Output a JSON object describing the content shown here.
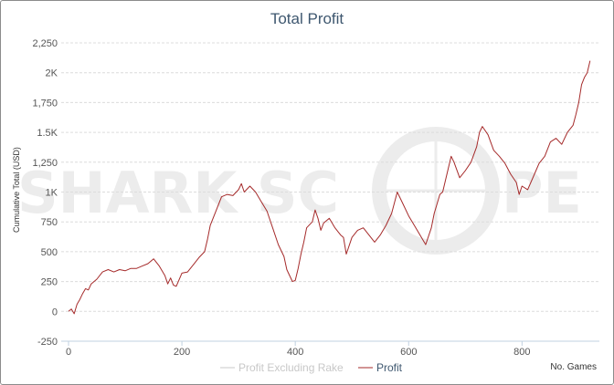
{
  "watermark": {
    "left": "SHARK SC",
    "right": "PE"
  },
  "legend": {
    "items": [
      {
        "label": "Profit Excluding Rake",
        "color": "#c8c8c8",
        "active": false
      },
      {
        "label": "Profit",
        "color": "#a52a2a",
        "active": true
      }
    ]
  },
  "chart_data": {
    "type": "line",
    "title": "Total Profit",
    "xlabel": "No. Games",
    "ylabel": "Cumulative Total (USD)",
    "xlim": [
      0,
      930
    ],
    "ylim": [
      -250,
      2250
    ],
    "x_ticks": [
      0,
      200,
      400,
      600,
      800
    ],
    "x_tick_labels": [
      "0",
      "200",
      "400",
      "600",
      "800"
    ],
    "y_ticks": [
      -250,
      0,
      250,
      500,
      750,
      1000,
      1250,
      1500,
      1750,
      2000,
      2250
    ],
    "y_tick_labels": [
      "-250",
      "0",
      "250",
      "500",
      "750",
      "1K",
      "1,250",
      "1.5K",
      "1,750",
      "2K",
      "2,250"
    ],
    "grid": true,
    "legend_position": "bottom",
    "series": [
      {
        "name": "Profit",
        "color": "#a52a2a",
        "points": [
          [
            0,
            0
          ],
          [
            5,
            20
          ],
          [
            10,
            -20
          ],
          [
            15,
            60
          ],
          [
            20,
            100
          ],
          [
            25,
            150
          ],
          [
            30,
            190
          ],
          [
            35,
            180
          ],
          [
            40,
            230
          ],
          [
            50,
            270
          ],
          [
            60,
            330
          ],
          [
            70,
            350
          ],
          [
            80,
            330
          ],
          [
            90,
            350
          ],
          [
            100,
            340
          ],
          [
            110,
            360
          ],
          [
            120,
            360
          ],
          [
            130,
            380
          ],
          [
            140,
            400
          ],
          [
            150,
            440
          ],
          [
            160,
            380
          ],
          [
            170,
            300
          ],
          [
            175,
            230
          ],
          [
            180,
            280
          ],
          [
            185,
            220
          ],
          [
            190,
            210
          ],
          [
            200,
            320
          ],
          [
            210,
            330
          ],
          [
            220,
            390
          ],
          [
            230,
            450
          ],
          [
            240,
            500
          ],
          [
            245,
            600
          ],
          [
            250,
            720
          ],
          [
            260,
            840
          ],
          [
            270,
            960
          ],
          [
            280,
            980
          ],
          [
            290,
            970
          ],
          [
            300,
            1020
          ],
          [
            305,
            1070
          ],
          [
            310,
            1000
          ],
          [
            320,
            1050
          ],
          [
            330,
            1000
          ],
          [
            340,
            920
          ],
          [
            350,
            840
          ],
          [
            360,
            700
          ],
          [
            370,
            560
          ],
          [
            380,
            460
          ],
          [
            385,
            350
          ],
          [
            390,
            300
          ],
          [
            395,
            250
          ],
          [
            400,
            260
          ],
          [
            405,
            360
          ],
          [
            410,
            480
          ],
          [
            415,
            580
          ],
          [
            420,
            700
          ],
          [
            430,
            750
          ],
          [
            435,
            850
          ],
          [
            440,
            780
          ],
          [
            445,
            680
          ],
          [
            450,
            740
          ],
          [
            460,
            780
          ],
          [
            470,
            700
          ],
          [
            480,
            640
          ],
          [
            485,
            620
          ],
          [
            490,
            480
          ],
          [
            500,
            620
          ],
          [
            510,
            680
          ],
          [
            520,
            700
          ],
          [
            530,
            640
          ],
          [
            540,
            580
          ],
          [
            550,
            640
          ],
          [
            560,
            720
          ],
          [
            570,
            820
          ],
          [
            580,
            1000
          ],
          [
            590,
            900
          ],
          [
            600,
            800
          ],
          [
            610,
            720
          ],
          [
            620,
            640
          ],
          [
            630,
            560
          ],
          [
            640,
            700
          ],
          [
            645,
            820
          ],
          [
            650,
            900
          ],
          [
            655,
            980
          ],
          [
            660,
            1000
          ],
          [
            665,
            1100
          ],
          [
            670,
            1200
          ],
          [
            675,
            1300
          ],
          [
            680,
            1250
          ],
          [
            690,
            1120
          ],
          [
            700,
            1180
          ],
          [
            710,
            1250
          ],
          [
            720,
            1380
          ],
          [
            725,
            1500
          ],
          [
            730,
            1550
          ],
          [
            740,
            1480
          ],
          [
            750,
            1350
          ],
          [
            760,
            1300
          ],
          [
            770,
            1240
          ],
          [
            780,
            1150
          ],
          [
            790,
            1080
          ],
          [
            795,
            980
          ],
          [
            800,
            1050
          ],
          [
            810,
            1020
          ],
          [
            820,
            1130
          ],
          [
            830,
            1240
          ],
          [
            840,
            1300
          ],
          [
            850,
            1420
          ],
          [
            860,
            1450
          ],
          [
            870,
            1400
          ],
          [
            880,
            1500
          ],
          [
            890,
            1560
          ],
          [
            895,
            1650
          ],
          [
            900,
            1750
          ],
          [
            905,
            1900
          ],
          [
            910,
            1960
          ],
          [
            915,
            2000
          ],
          [
            920,
            2100
          ]
        ]
      }
    ]
  }
}
